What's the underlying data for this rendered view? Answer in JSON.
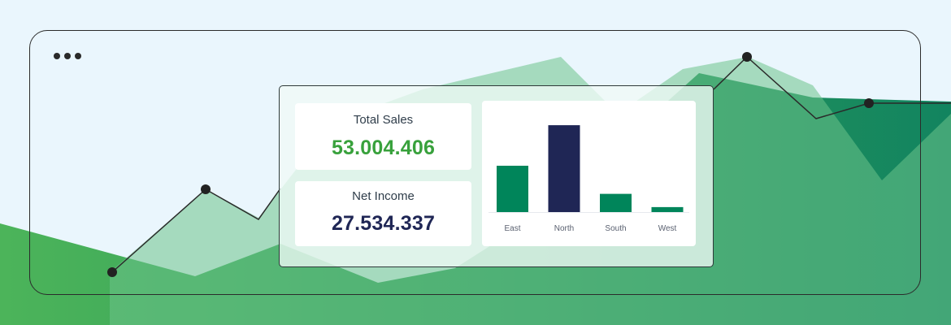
{
  "kpis": {
    "total_sales": {
      "label": "Total Sales",
      "value": "53.004.406",
      "color": "#38a13c"
    },
    "net_income": {
      "label": "Net Income",
      "value": "27.534.337",
      "color": "#1f2655"
    }
  },
  "chart_data": {
    "type": "bar",
    "categories": [
      "East",
      "North",
      "South",
      "West"
    ],
    "values": [
      56,
      105,
      22,
      6
    ],
    "colors": [
      "#00855a",
      "#1f2655",
      "#00855a",
      "#00855a"
    ],
    "ylim": [
      0,
      110
    ],
    "title": "",
    "xlabel": "",
    "ylabel": "",
    "grid": false
  },
  "colors": {
    "background": "#eaf6fd",
    "green_light": "#4fb465",
    "green_dark": "#14885e",
    "frame": "#2b2b2b"
  }
}
